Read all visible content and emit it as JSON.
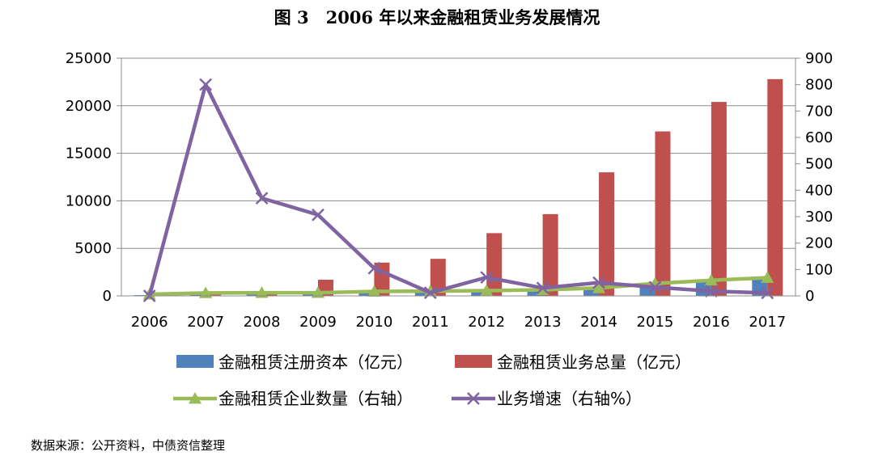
{
  "page": {
    "title": "图 3　2006 年以来金融租赁业务发展情况",
    "source": "数据来源：公开资料，中债资信整理"
  },
  "chart_data": {
    "type": "bar",
    "categories": [
      "2006",
      "2007",
      "2008",
      "2009",
      "2010",
      "2011",
      "2012",
      "2013",
      "2014",
      "2015",
      "2016",
      "2017"
    ],
    "y_left": {
      "min": 0,
      "max": 25000,
      "ticks": [
        0,
        5000,
        10000,
        15000,
        20000,
        25000
      ],
      "tick_labels": [
        "0",
        "5000",
        "10000",
        "15000",
        "20000",
        "25000"
      ]
    },
    "y_right": {
      "min": 0,
      "max": 900,
      "ticks": [
        0,
        100,
        200,
        300,
        400,
        500,
        600,
        700,
        800,
        900
      ],
      "tick_labels": [
        "0",
        "100",
        "200",
        "300",
        "400",
        "500",
        "600",
        "700",
        "800",
        "900"
      ]
    },
    "grid": true,
    "legend_position": "bottom",
    "series": [
      {
        "name": "金融租赁注册资本（亿元）",
        "type": "bar",
        "axis": "left",
        "color": "#4F81BD",
        "values": [
          80,
          140,
          160,
          220,
          420,
          580,
          690,
          760,
          900,
          1300,
          1560,
          1800
        ]
      },
      {
        "name": "金融租赁业务总量（亿元）",
        "type": "bar",
        "axis": "left",
        "color": "#C0504D",
        "values": [
          90,
          240,
          420,
          1700,
          3500,
          3900,
          6600,
          8600,
          13000,
          17300,
          20400,
          22800
        ]
      },
      {
        "name": "金融租赁企业数量（右轴）",
        "type": "line",
        "axis": "right",
        "color": "#9BBB59",
        "marker": "triangle",
        "values": [
          6,
          11,
          12,
          12,
          17,
          18,
          20,
          23,
          30,
          47,
          59,
          69
        ]
      },
      {
        "name": "业务增速（右轴%）",
        "type": "line",
        "axis": "right",
        "color": "#8064A2",
        "marker": "x",
        "values": [
          0,
          800,
          370,
          307,
          105,
          12,
          70,
          30,
          50,
          33,
          18,
          11
        ]
      }
    ]
  }
}
